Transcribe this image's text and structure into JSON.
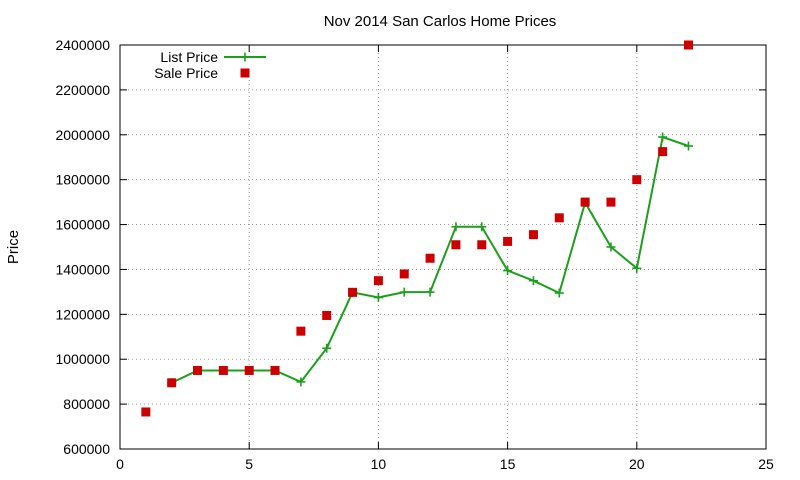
{
  "chart_data": {
    "type": "line",
    "title": "Nov 2014 San Carlos Home Prices",
    "xlabel": "",
    "ylabel": "Price",
    "xlim": [
      0,
      25
    ],
    "ylim": [
      600000,
      2400000
    ],
    "xticks": [
      0,
      5,
      10,
      15,
      20,
      25
    ],
    "yticks": [
      600000,
      800000,
      1000000,
      1200000,
      1400000,
      1600000,
      1800000,
      2000000,
      2200000,
      2400000
    ],
    "grid": true,
    "legend_position": "top-left",
    "series": [
      {
        "name": "List Price",
        "style": "line-with-plus-markers",
        "color": "#1ca01c",
        "x": [
          2,
          3,
          4,
          5,
          6,
          7,
          8,
          9,
          10,
          11,
          12,
          13,
          14,
          15,
          16,
          17,
          18,
          19,
          20,
          21,
          22
        ],
        "y": [
          895000,
          950000,
          950000,
          950000,
          950000,
          899000,
          1049000,
          1298000,
          1275000,
          1299000,
          1299000,
          1590000,
          1590000,
          1395000,
          1350000,
          1295000,
          1698000,
          1500000,
          1405000,
          1990000,
          1950000
        ]
      },
      {
        "name": "Sale Price",
        "style": "square-markers",
        "color": "#cc0000",
        "x": [
          1,
          2,
          3,
          4,
          5,
          6,
          7,
          8,
          9,
          10,
          11,
          12,
          13,
          14,
          15,
          16,
          17,
          18,
          19,
          20,
          21,
          22
        ],
        "y": [
          765000,
          895000,
          950000,
          950000,
          950000,
          950000,
          1125000,
          1195000,
          1298000,
          1350000,
          1380000,
          1450000,
          1510000,
          1510000,
          1525000,
          1555000,
          1630000,
          1700000,
          1700000,
          1800000,
          1925000,
          2400000
        ]
      }
    ]
  }
}
